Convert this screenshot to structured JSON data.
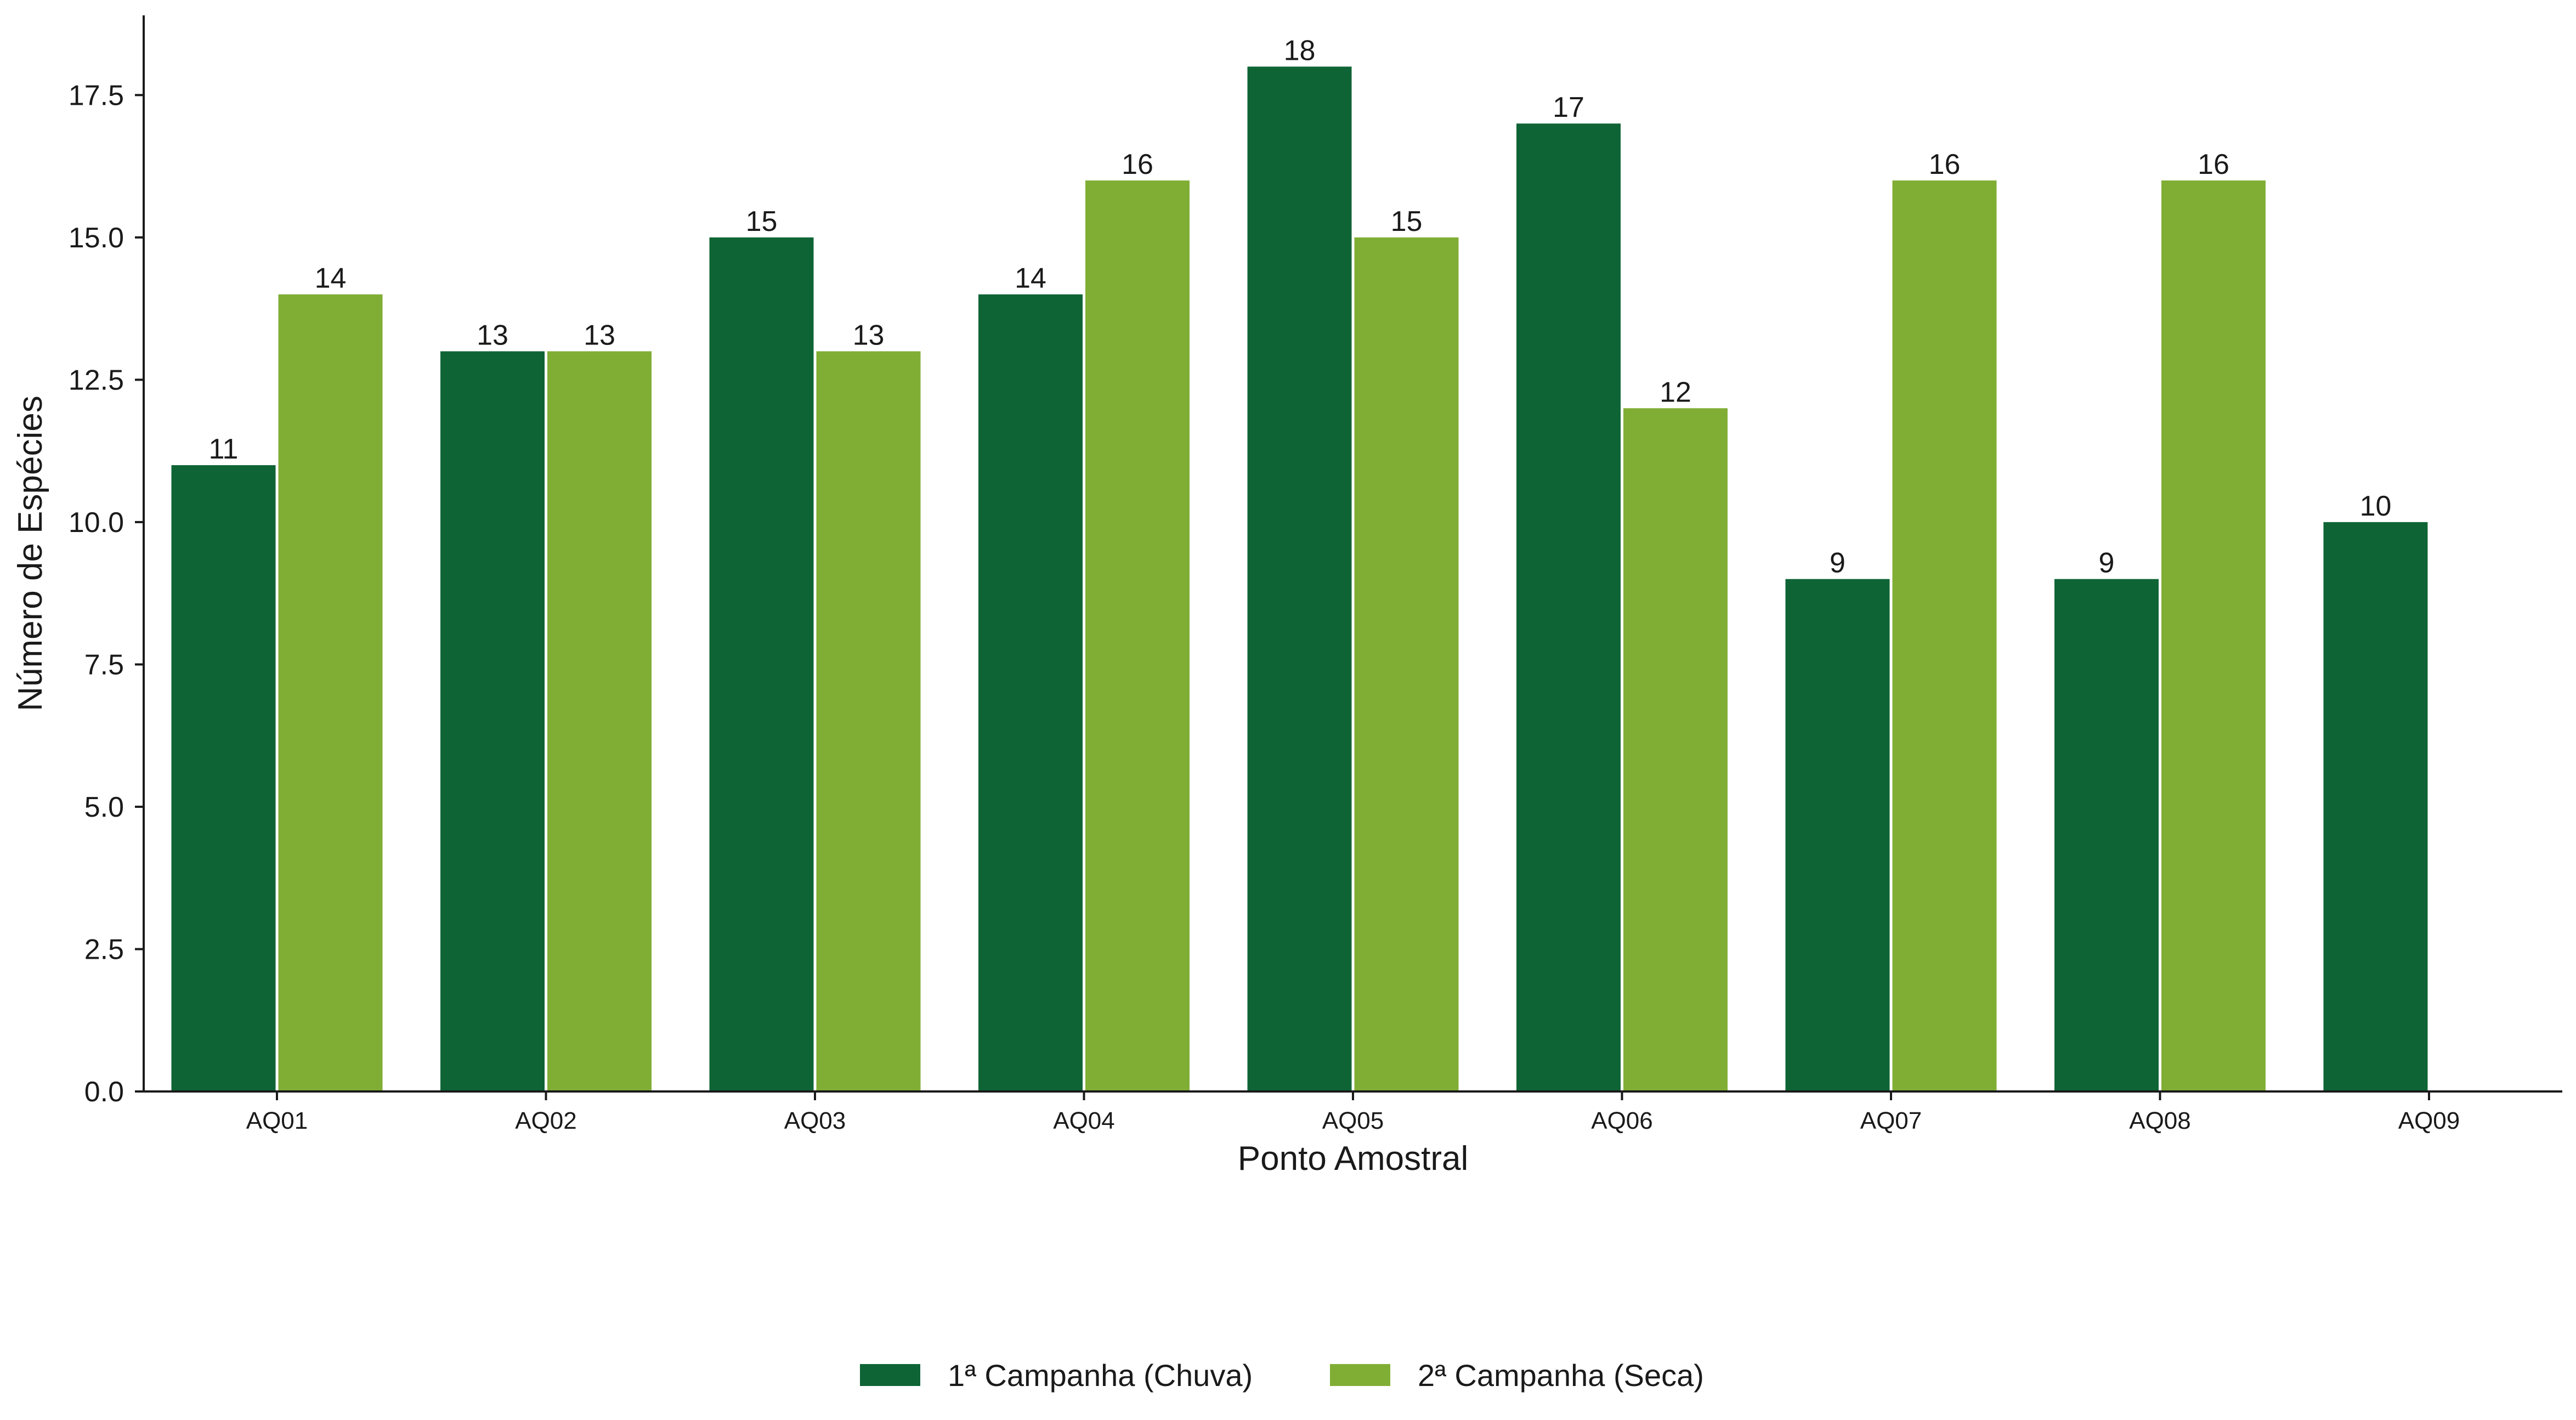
{
  "chart_data": {
    "type": "bar",
    "title": "",
    "xlabel": "Ponto Amostral",
    "ylabel": "Número de Espécies",
    "categories": [
      "AQ01",
      "AQ02",
      "AQ03",
      "AQ04",
      "AQ05",
      "AQ06",
      "AQ07",
      "AQ08",
      "AQ09"
    ],
    "series": [
      {
        "name": "1ª Campanha (Chuva)",
        "color": "#0f6435",
        "values": [
          11,
          13,
          15,
          14,
          18,
          17,
          9,
          9,
          10
        ]
      },
      {
        "name": "2ª Campanha (Seca)",
        "color": "#80ae35",
        "values": [
          14,
          13,
          13,
          16,
          15,
          12,
          16,
          16,
          null
        ]
      }
    ],
    "ylim": [
      0,
      18.9
    ],
    "yticks": [
      "0.0",
      "2.5",
      "5.0",
      "7.5",
      "10.0",
      "12.5",
      "15.0",
      "17.5"
    ],
    "grid": false,
    "legend_position": "bottom-center"
  }
}
